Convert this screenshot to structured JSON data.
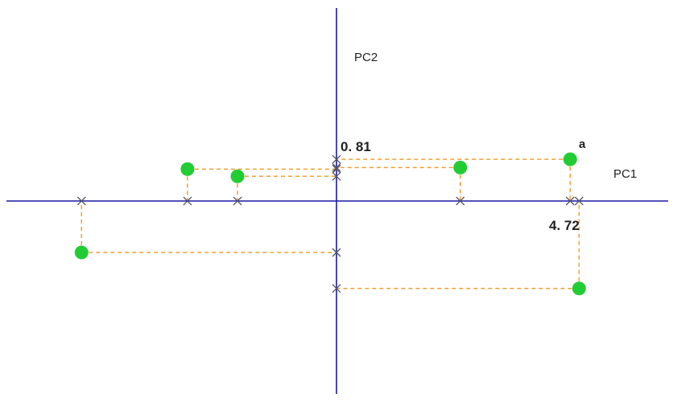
{
  "diagram": {
    "axes": {
      "x_label": "PC1",
      "y_label": "PC2",
      "axis_color": "#1a1aa6"
    },
    "colors": {
      "point": "#22cc33",
      "guide": "#f0a030",
      "tick_mark": "#555566",
      "text": "#222222",
      "label_accent": "#cc0000"
    },
    "highlight": {
      "x_value_label": "4. 72",
      "y_value_label": "0. 81",
      "point_label": "a"
    },
    "points": [
      {
        "pc1": -3.01,
        "pc2": 0.62
      },
      {
        "pc1": -2.0,
        "pc2": 0.48
      },
      {
        "pc1": -5.15,
        "pc2": -1.0
      },
      {
        "pc1": 2.5,
        "pc2": 0.65
      },
      {
        "pc1": 4.72,
        "pc2": 0.81,
        "label": "a"
      },
      {
        "pc1": 4.9,
        "pc2": -1.7
      }
    ]
  }
}
